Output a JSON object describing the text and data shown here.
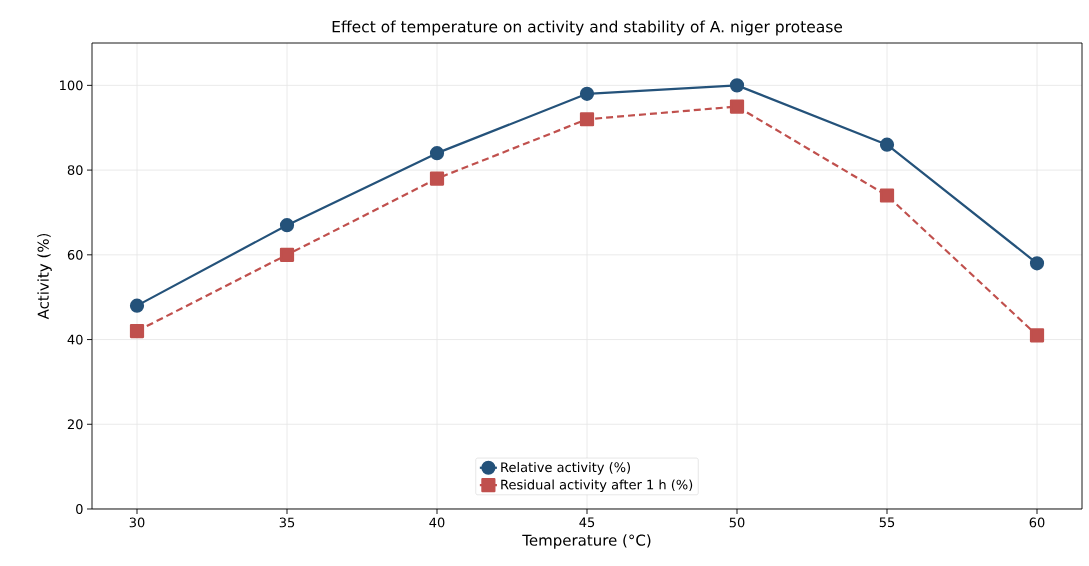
{
  "chart_data": {
    "type": "line",
    "title": "Effect of temperature on activity and stability of A. niger protease",
    "xlabel": "Temperature (°C)",
    "ylabel": "Activity (%)",
    "x": [
      30,
      35,
      40,
      45,
      50,
      55,
      60
    ],
    "series": [
      {
        "name": "Relative activity (%)",
        "color": "#24527a",
        "values": [
          48,
          67,
          84,
          98,
          100,
          86,
          58
        ],
        "marker": "circle",
        "line_style": "solid"
      },
      {
        "name": "Residual activity after 1 h (%)",
        "color": "#c0504d",
        "values": [
          42,
          60,
          78,
          92,
          95,
          74,
          41
        ],
        "marker": "square",
        "line_style": "dashed"
      }
    ],
    "xlim": [
      28.5,
      61.5
    ],
    "ylim": [
      0,
      110
    ],
    "xticks": [
      30,
      35,
      40,
      45,
      50,
      55,
      60
    ],
    "yticks": [
      0,
      20,
      40,
      60,
      80,
      100
    ],
    "grid": true,
    "legend": "bottom"
  }
}
